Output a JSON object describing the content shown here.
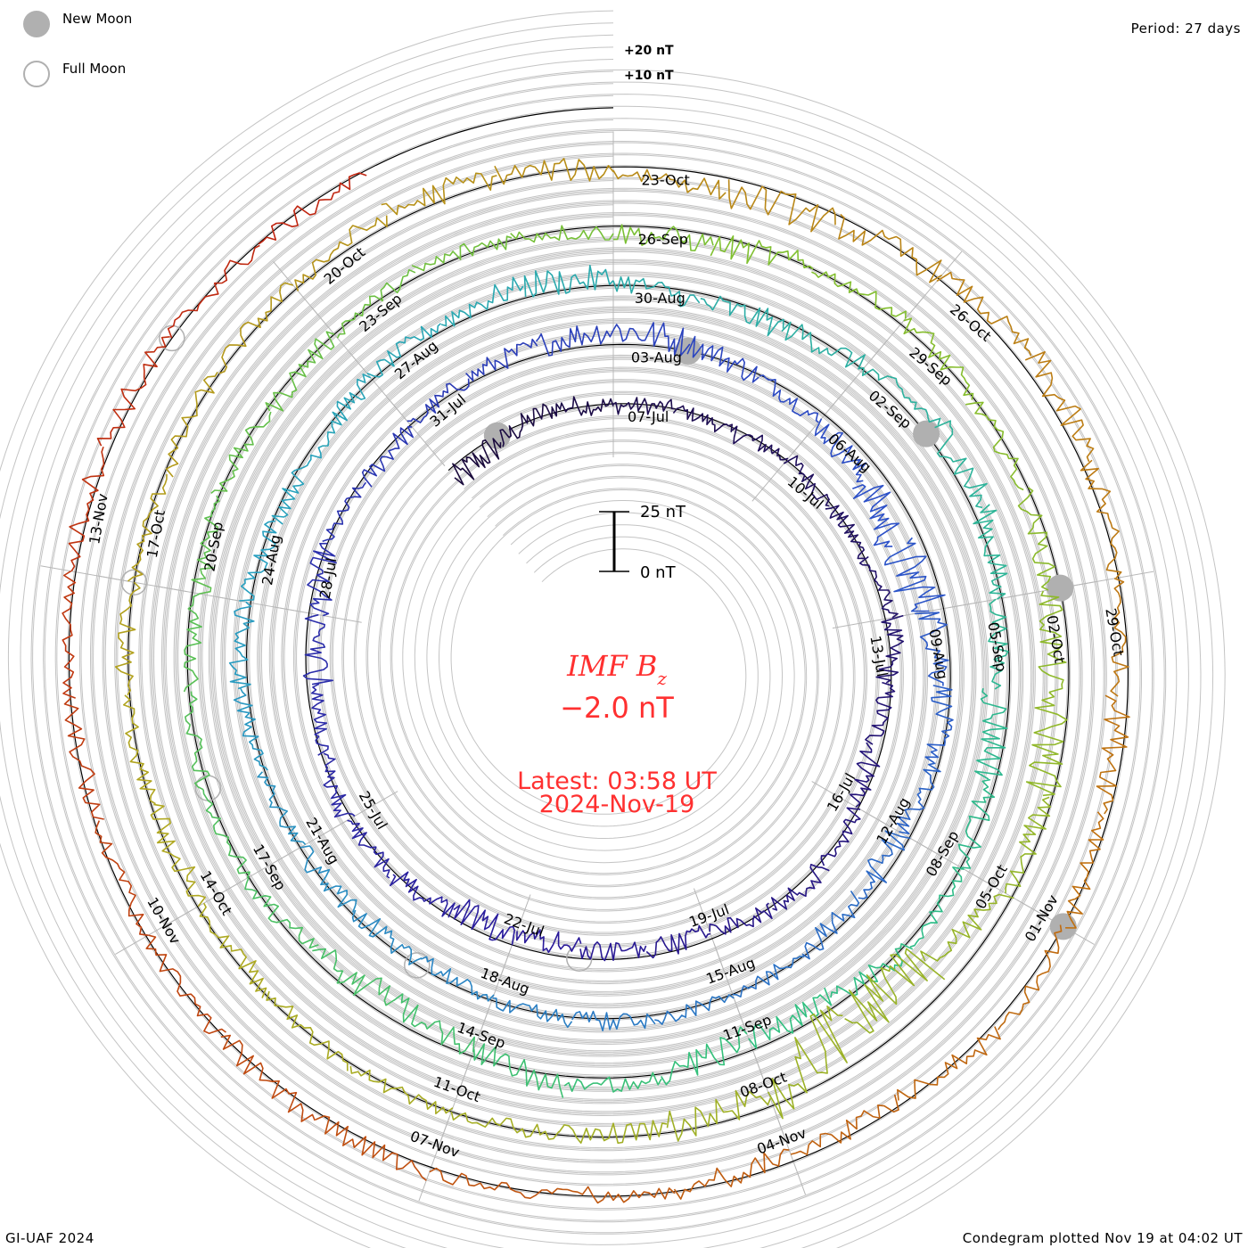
{
  "legend": {
    "new_moon": "New Moon",
    "full_moon": "Full Moon",
    "new_moon_color": "#b0b0b0",
    "full_moon_color": "#b0b0b0"
  },
  "period_label": "Period: 27 days",
  "credit": "GI-UAF 2024",
  "plotted": "Condegram plotted Nov 19 at 04:02 UT",
  "chart_data": {
    "type": "line",
    "title": "IMF B",
    "title_sub": "z",
    "current_value": "−2.0 nT",
    "latest_time": "Latest: 03:58 UT",
    "latest_date": "2024-Nov-19",
    "scale_bar": {
      "top": "25 nT",
      "bottom": "0 nT",
      "range_nT": 25
    },
    "ring_labels": [
      "+20 nT",
      "+10 nT"
    ],
    "period_days": 27,
    "start_offset_days": -3,
    "date_labels_every_days": 3,
    "date_labels": [
      "07-Jul",
      "10-Jul",
      "13-Jul",
      "16-Jul",
      "19-Jul",
      "22-Jul",
      "25-Jul",
      "28-Jul",
      "31-Jul",
      "03-Aug",
      "06-Aug",
      "09-Aug",
      "12-Aug",
      "15-Aug",
      "18-Aug",
      "21-Aug",
      "24-Aug",
      "27-Aug",
      "30-Aug",
      "02-Sep",
      "05-Sep",
      "08-Sep",
      "11-Sep",
      "14-Sep",
      "17-Sep",
      "20-Sep",
      "23-Sep",
      "26-Sep",
      "29-Sep",
      "02-Oct",
      "05-Oct",
      "08-Oct",
      "11-Oct",
      "14-Oct",
      "17-Oct",
      "20-Oct",
      "23-Oct",
      "26-Oct",
      "29-Oct",
      "01-Nov",
      "04-Nov",
      "07-Nov",
      "10-Nov",
      "13-Nov"
    ],
    "new_moon_days_from_07Jul": [
      -2,
      28,
      58,
      87,
      117
    ],
    "full_moon_days_from_07Jul": [
      14,
      43,
      73,
      102,
      131
    ],
    "daily_bz_nT": [
      -6,
      -3,
      2,
      -1,
      0,
      -2,
      1,
      -1,
      0,
      3,
      -2,
      -4,
      -1,
      2,
      1,
      -3,
      -2,
      -4,
      -6,
      -3,
      1,
      2,
      -1,
      -5,
      -4,
      0,
      -2,
      -1,
      2,
      4,
      6,
      3,
      -1,
      -4,
      -8,
      -12,
      -6,
      -3,
      -2,
      -5,
      -3,
      -1,
      0,
      2,
      1,
      -1,
      -3,
      -2,
      0,
      1,
      3,
      2,
      -1,
      -2,
      1,
      3,
      5,
      2,
      -4,
      -3,
      1,
      6,
      4,
      -2,
      -6,
      -3,
      0,
      2,
      -4,
      -5,
      1,
      4,
      -3,
      -7,
      -2,
      0,
      2,
      -1,
      -3,
      1,
      -2,
      0,
      2,
      1,
      -3,
      -4,
      0,
      3,
      -1,
      -2,
      -5,
      -8,
      -4,
      -3,
      -14,
      -18,
      -6,
      -2,
      -1,
      0,
      1,
      -2,
      -3,
      -1,
      2,
      0,
      -1,
      1,
      2,
      4,
      3,
      -2,
      -6,
      -4,
      2,
      5,
      3,
      -1,
      -4,
      -2,
      1,
      3,
      -2,
      -3,
      -1,
      0,
      2,
      3,
      1,
      -1,
      -2,
      0,
      2,
      3,
      1,
      -1,
      -2
    ],
    "series_color_stops": [
      "#1a0a3c",
      "#2a1a9a",
      "#2c50c8",
      "#28a0c0",
      "#30c080",
      "#80c030",
      "#b0a820",
      "#c07010",
      "#c02010"
    ]
  }
}
